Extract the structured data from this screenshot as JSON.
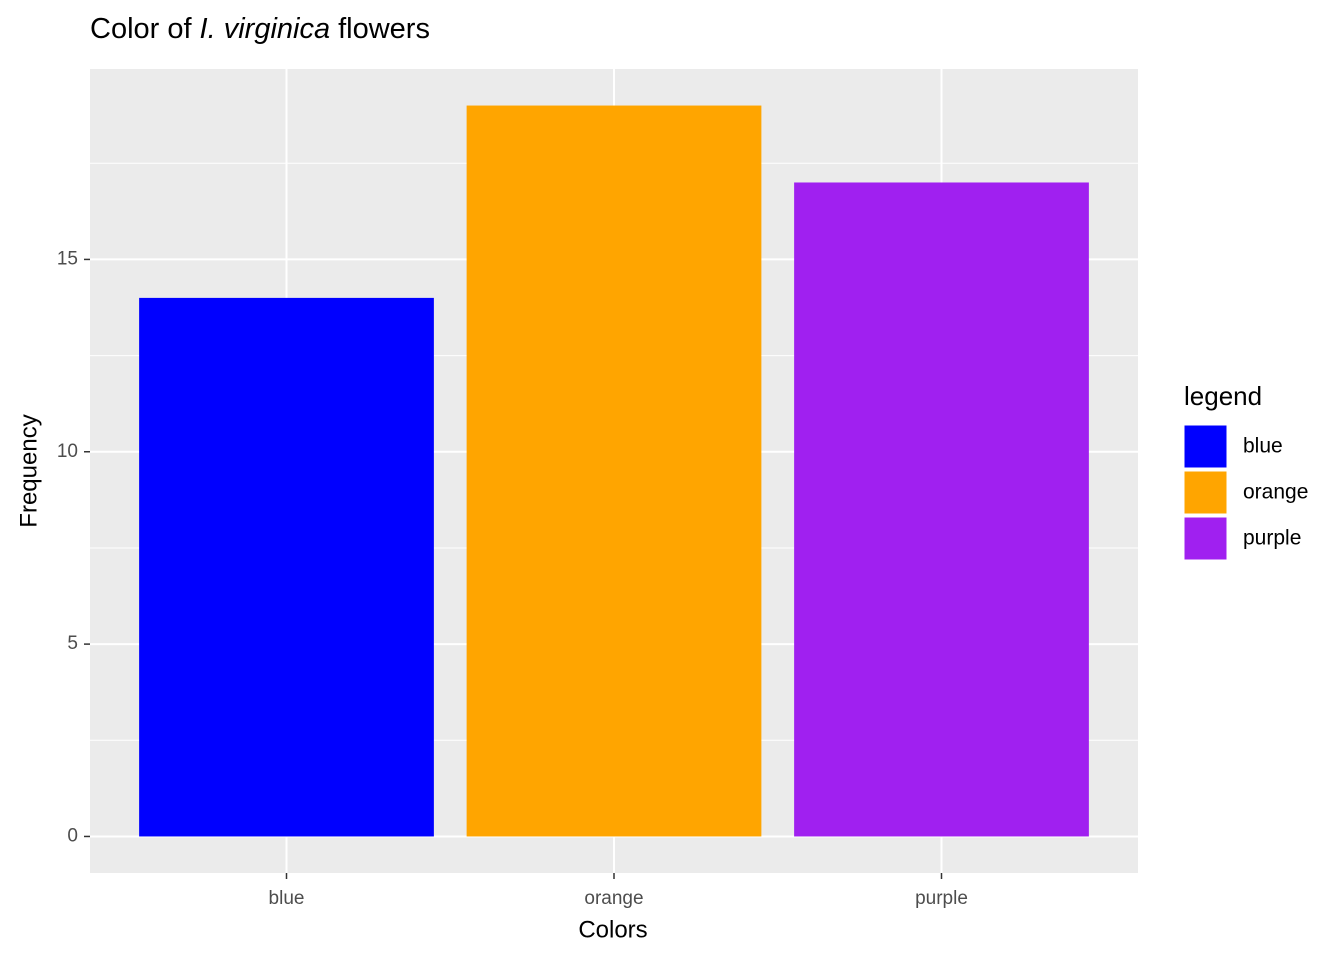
{
  "chart_data": {
    "type": "bar",
    "title": [
      "Color of",
      "I. virginica",
      "flowers"
    ],
    "x_label": "Colors",
    "y_label": "Frequency",
    "categories": [
      "blue",
      "orange",
      "purple"
    ],
    "values": [
      14,
      19,
      17
    ],
    "colors": [
      "#0000ff",
      "#ffa500",
      "#a020f0"
    ],
    "ylim": [
      -0.95,
      19.95
    ],
    "yticks": [
      0,
      5,
      10,
      15
    ],
    "grid": true,
    "legend": {
      "title": "legend",
      "position": "right"
    }
  }
}
